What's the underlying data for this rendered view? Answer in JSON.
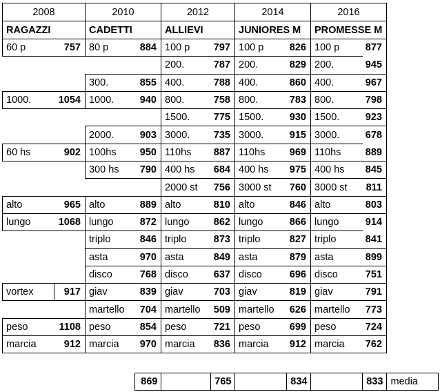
{
  "table": {
    "groups": [
      {
        "year": "2008",
        "category": "RAGAZZI",
        "events": [
          {
            "label": "60 p",
            "value": "757"
          },
          null,
          null,
          {
            "label": "1000.",
            "value": "1054"
          },
          null,
          null,
          {
            "label": "60 hs",
            "value": "902"
          },
          null,
          null,
          {
            "label": "alto",
            "value": "965"
          },
          {
            "label": "lungo",
            "value": "1068"
          },
          null,
          null,
          null,
          {
            "label": "vortex",
            "value": "917",
            "divider": true
          },
          null,
          {
            "label": "peso",
            "value": "1108"
          },
          {
            "label": "marcia",
            "value": "912"
          }
        ]
      },
      {
        "year": "2010",
        "category": "CADETTI",
        "events": [
          {
            "label": "80 p",
            "value": "884"
          },
          null,
          {
            "label": "300.",
            "value": "855"
          },
          {
            "label": "1000.",
            "value": "940"
          },
          null,
          {
            "label": "2000.",
            "value": "903"
          },
          {
            "label": "100hs",
            "value": "950"
          },
          {
            "label": "300 hs",
            "value": "790"
          },
          null,
          {
            "label": "alto",
            "value": "889"
          },
          {
            "label": "lungo",
            "value": "872"
          },
          {
            "label": "triplo",
            "value": "846"
          },
          {
            "label": "asta",
            "value": "970"
          },
          {
            "label": "disco",
            "value": "768"
          },
          {
            "label": "giav",
            "value": "839"
          },
          {
            "label": "martello",
            "value": "704"
          },
          {
            "label": "peso",
            "value": "854"
          },
          {
            "label": "marcia",
            "value": "970"
          }
        ]
      },
      {
        "year": "2012",
        "category": "ALLIEVI",
        "events": [
          {
            "label": "100 p",
            "value": "797"
          },
          {
            "label": "200.",
            "value": "787"
          },
          {
            "label": "400.",
            "value": "788"
          },
          {
            "label": "800.",
            "value": "758"
          },
          {
            "label": "1500.",
            "value": "775"
          },
          {
            "label": "3000.",
            "value": "735"
          },
          {
            "label": "110hs",
            "value": "887"
          },
          {
            "label": "400 hs",
            "value": "684"
          },
          {
            "label": "2000 st",
            "value": "756"
          },
          {
            "label": "alto",
            "value": "810"
          },
          {
            "label": "lungo",
            "value": "862"
          },
          {
            "label": "triplo",
            "value": "873"
          },
          {
            "label": "asta",
            "value": "849"
          },
          {
            "label": "disco",
            "value": "637"
          },
          {
            "label": "giav",
            "value": "703"
          },
          {
            "label": "martello",
            "value": "509"
          },
          {
            "label": "peso",
            "value": "721"
          },
          {
            "label": "marcia",
            "value": "836"
          }
        ]
      },
      {
        "year": "2014",
        "category": "JUNIORES M",
        "events": [
          {
            "label": "100 p",
            "value": "826"
          },
          {
            "label": "200.",
            "value": "829"
          },
          {
            "label": "400.",
            "value": "860"
          },
          {
            "label": "800.",
            "value": "783"
          },
          {
            "label": "1500.",
            "value": "930"
          },
          {
            "label": "3000.",
            "value": "915"
          },
          {
            "label": "110hs",
            "value": "969"
          },
          {
            "label": "400 hs",
            "value": "975"
          },
          {
            "label": "3000 st",
            "value": "760"
          },
          {
            "label": "alto",
            "value": "846"
          },
          {
            "label": "lungo",
            "value": "866"
          },
          {
            "label": "triplo",
            "value": "827"
          },
          {
            "label": "asta",
            "value": "879"
          },
          {
            "label": "disco",
            "value": "696"
          },
          {
            "label": "giav",
            "value": "819"
          },
          {
            "label": "martello",
            "value": "626"
          },
          {
            "label": "peso",
            "value": "699"
          },
          {
            "label": "marcia",
            "value": "912"
          }
        ]
      },
      {
        "year": "2016",
        "category": "PROMESSE M",
        "events": [
          {
            "label": "100 p",
            "value": "877",
            "partial_bottom": true
          },
          {
            "label": "200.",
            "value": "945"
          },
          {
            "label": "400.",
            "value": "967"
          },
          {
            "label": "800.",
            "value": "798"
          },
          {
            "label": "1500.",
            "value": "923"
          },
          {
            "label": "3000.",
            "value": "678",
            "partial_bottom": true
          },
          {
            "label": "110hs",
            "value": "889"
          },
          {
            "label": "400 hs",
            "value": "845"
          },
          {
            "label": "3000 st",
            "value": "811"
          },
          {
            "label": "alto",
            "value": "803"
          },
          {
            "label": "lungo",
            "value": "914",
            "partial_bottom": true
          },
          {
            "label": "triplo",
            "value": "841"
          },
          {
            "label": "asta",
            "value": "899"
          },
          {
            "label": "disco",
            "value": "751"
          },
          {
            "label": "giav",
            "value": "791"
          },
          {
            "label": "martello",
            "value": "773"
          },
          {
            "label": "peso",
            "value": "724"
          },
          {
            "label": "marcia",
            "value": "762"
          }
        ]
      }
    ]
  },
  "summary": {
    "values": [
      "869",
      "765",
      "834",
      "833"
    ],
    "label": "media"
  },
  "colors": {
    "border": "#000000",
    "text": "#000000",
    "background": "#ffffff"
  }
}
